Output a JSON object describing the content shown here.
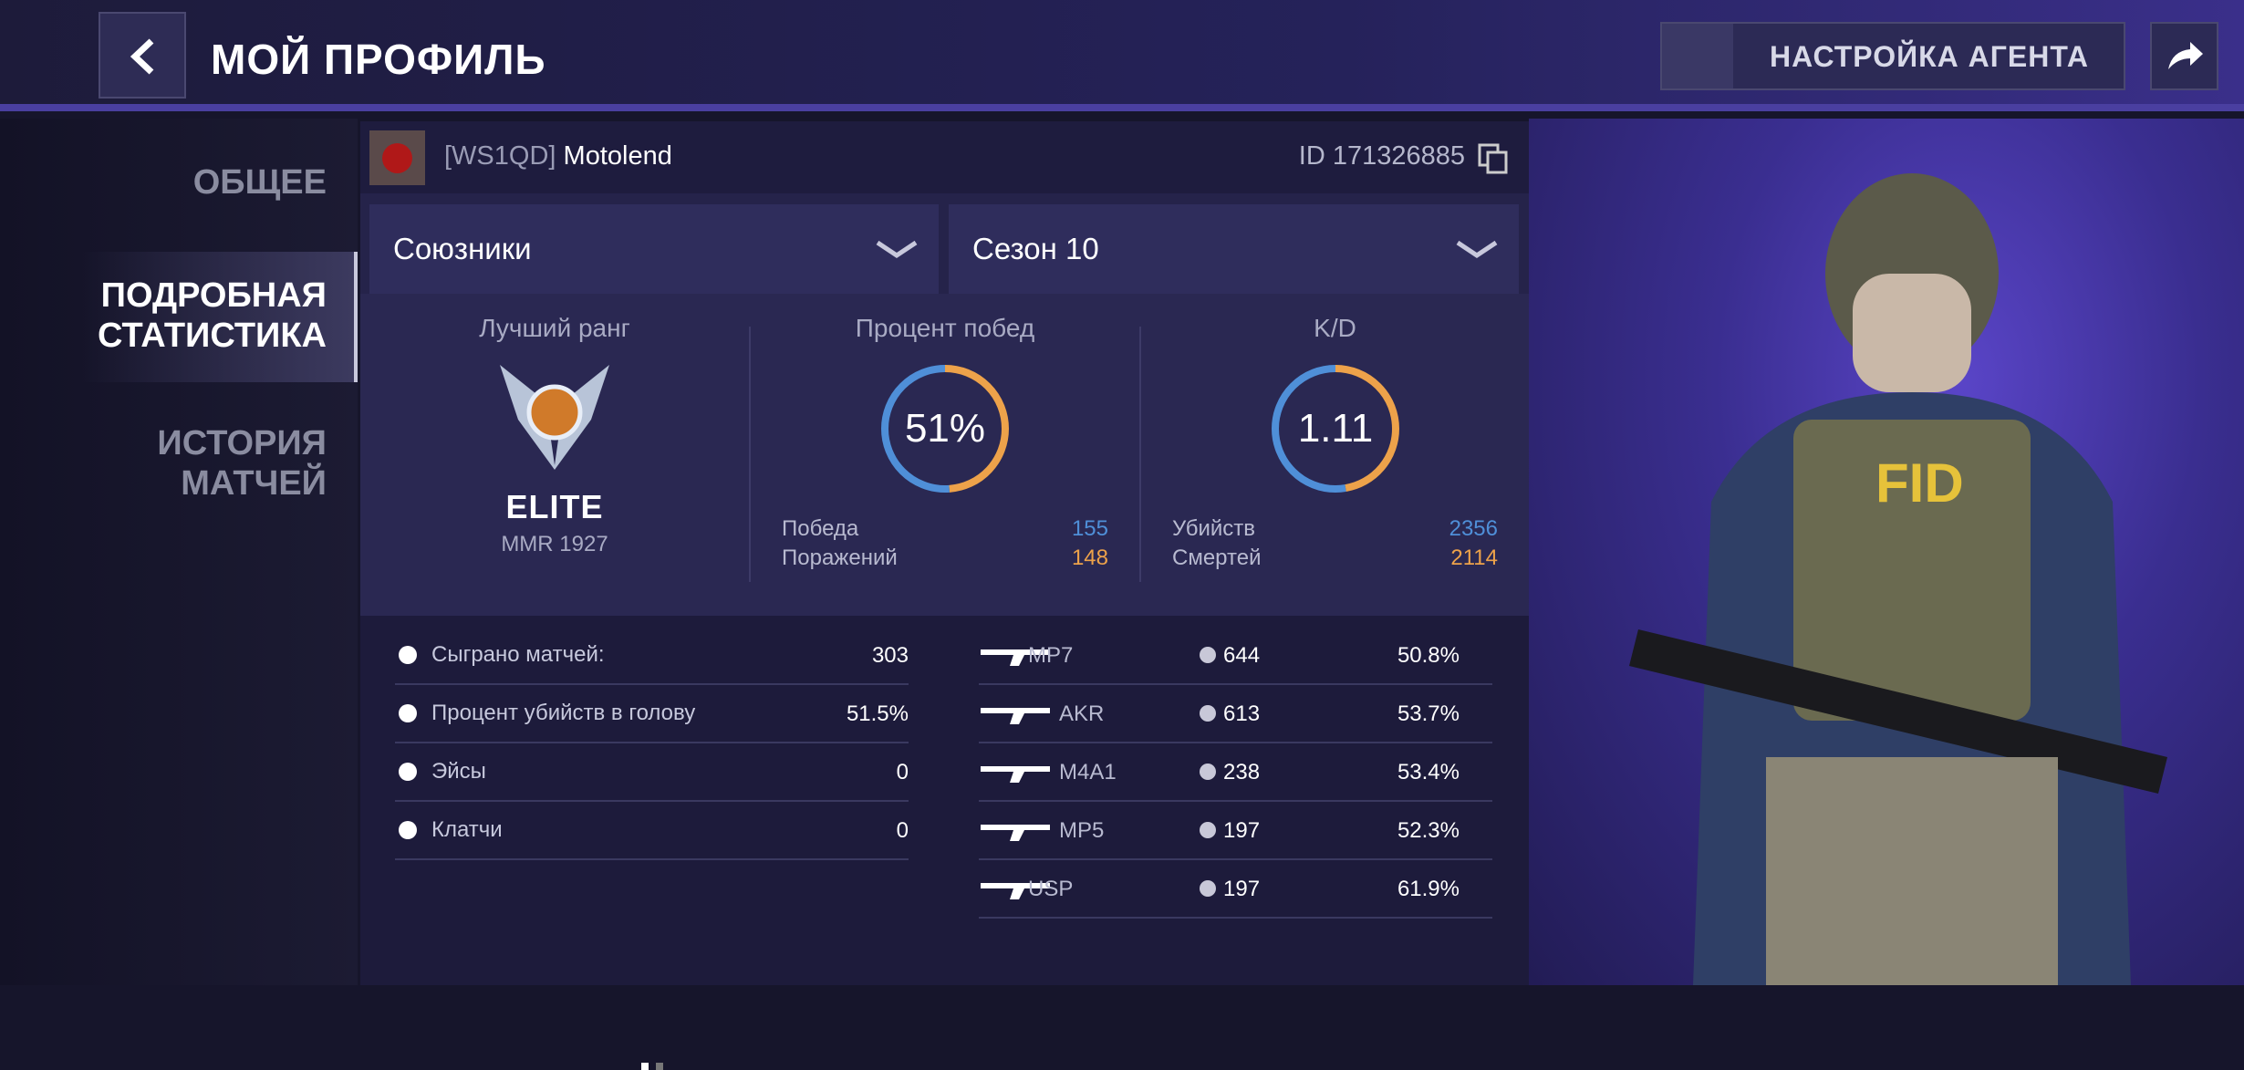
{
  "header": {
    "title": "МОЙ ПРОФИЛЬ",
    "agent_button": "НАСТРОЙКА АГЕНТА"
  },
  "sidebar": {
    "items": [
      "ОБЩЕЕ",
      "ПОДРОБНАЯ СТАТИСТИКА",
      "ИСТОРИЯ МАТЧЕЙ"
    ]
  },
  "profile": {
    "clan": "[WS1QD]",
    "name": "Motolend",
    "id": "ID 171326885"
  },
  "filters": [
    "Союзники",
    "Сезон 10"
  ],
  "rank": {
    "label": "Лучший ранг",
    "name": "ELITE",
    "mmr": "MMR 1927"
  },
  "win_rate": {
    "label": "Процент побед",
    "value": "51%",
    "rows": [
      {
        "label": "Победа",
        "value": 155
      },
      {
        "label": "Поражений",
        "value": 148
      }
    ]
  },
  "kd": {
    "label": "K/D",
    "value": "1.11",
    "rows": [
      {
        "label": "Убийств",
        "value": 2356
      },
      {
        "label": "Смертей",
        "value": 2114
      }
    ]
  },
  "stats": [
    {
      "label": "Сыграно матчей:",
      "value": "303"
    },
    {
      "label": "Процент убийств в голову",
      "value": "51.5%"
    },
    {
      "label": "Эйсы",
      "value": "0"
    },
    {
      "label": "Клатчи",
      "value": "0"
    }
  ],
  "weapons": [
    {
      "name": "MP7",
      "kills": 644,
      "headshot": "50.8%"
    },
    {
      "name": "AKR",
      "kills": 613,
      "headshot": "53.7%"
    },
    {
      "name": "M4A1",
      "kills": 238,
      "headshot": "53.4%"
    },
    {
      "name": "MP5",
      "kills": 197,
      "headshot": "52.3%"
    },
    {
      "name": "USP",
      "kills": 197,
      "headshot": "61.9%"
    }
  ]
}
